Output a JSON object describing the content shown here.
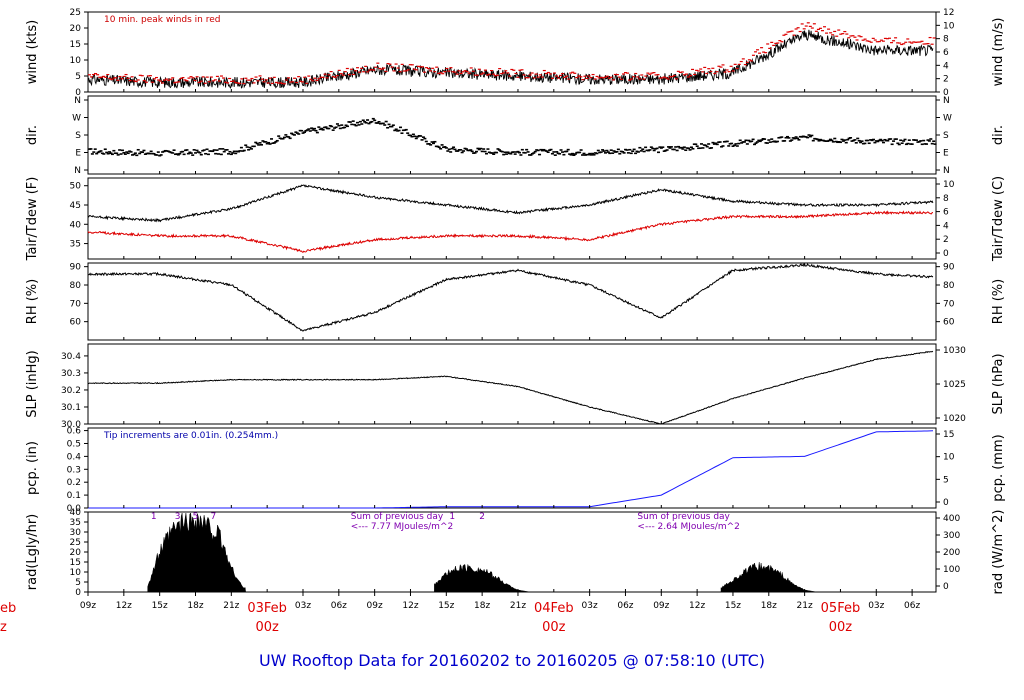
{
  "title": "UW Rooftop Data for 20160202  to  20160205 @ 07:58:10  (UTC)",
  "chart_data": [
    {
      "type": "line",
      "panel": "wind",
      "ylabel_left": "wind (kts)",
      "ylabel_right": "wind (m/s)",
      "ylim_left": [
        0,
        25
      ],
      "ticks_left": [
        "0",
        "5",
        "10",
        "15",
        "20",
        "25"
      ],
      "ylim_right": [
        0,
        12
      ],
      "ticks_right": [
        "0",
        "2",
        "4",
        "6",
        "8",
        "10",
        "12"
      ],
      "annotation": "10 min. peak winds in red",
      "series": [
        {
          "color": "#000000",
          "x_hours": [
            0,
            6,
            12,
            18,
            24,
            30,
            36,
            42,
            48,
            54,
            60,
            66,
            72,
            78,
            84
          ],
          "values": [
            4,
            3,
            3,
            3,
            7,
            6,
            5,
            4,
            4,
            6,
            18,
            13,
            13,
            7,
            5
          ]
        },
        {
          "color": "#dd0000",
          "x_hours": [
            0,
            6,
            12,
            18,
            24,
            30,
            36,
            42,
            48,
            54,
            60,
            66,
            72,
            78,
            84
          ],
          "values": [
            5,
            4,
            4,
            4,
            8,
            7,
            6,
            5,
            5,
            8,
            21,
            16,
            16,
            9,
            7
          ]
        }
      ]
    },
    {
      "type": "scatter",
      "panel": "direction",
      "ylabel_left": "dir.",
      "ylabel_right": "dir.",
      "ticks_left": [
        "N",
        "W",
        "S",
        "E",
        "N"
      ],
      "ticks_right": [
        "N",
        "W",
        "S",
        "E",
        "N"
      ],
      "x_hours": [
        0,
        6,
        12,
        18,
        24,
        30,
        36,
        42,
        48,
        54,
        60,
        66,
        72,
        78,
        84
      ],
      "values_deg": [
        100,
        90,
        100,
        200,
        260,
        110,
        95,
        95,
        110,
        140,
        170,
        150,
        150,
        120,
        130
      ]
    },
    {
      "type": "line",
      "panel": "temperature",
      "ylabel_left": "Tair/Tdew (F)",
      "ylabel_right": "Tair/Tdew (C)",
      "ylim_left": [
        31,
        52
      ],
      "ticks_left": [
        "35",
        "40",
        "45",
        "50"
      ],
      "ticks_right": [
        "0",
        "2",
        "4",
        "6",
        "8",
        "10"
      ],
      "series": [
        {
          "name": "Tair",
          "color": "#000000",
          "x_hours": [
            0,
            6,
            12,
            18,
            24,
            30,
            36,
            42,
            48,
            54,
            60,
            66,
            72,
            78,
            84
          ],
          "values": [
            42,
            41,
            44,
            50,
            47,
            45,
            43,
            45,
            49,
            46,
            45,
            45,
            46,
            48,
            50
          ]
        },
        {
          "name": "Tdew",
          "color": "#dd0000",
          "x_hours": [
            0,
            6,
            12,
            18,
            24,
            30,
            36,
            42,
            48,
            54,
            60,
            66,
            72,
            78,
            84
          ],
          "values": [
            38,
            37,
            37,
            33,
            36,
            37,
            37,
            36,
            40,
            42,
            42,
            43,
            43,
            45,
            43
          ]
        }
      ]
    },
    {
      "type": "line",
      "panel": "humidity",
      "ylabel_left": "RH (%)",
      "ylabel_right": "RH (%)",
      "ylim_left": [
        50,
        92
      ],
      "ticks_left": [
        "60",
        "70",
        "80",
        "90"
      ],
      "ticks_right": [
        "60",
        "70",
        "80",
        "90"
      ],
      "series": [
        {
          "color": "#000000",
          "x_hours": [
            0,
            6,
            12,
            18,
            24,
            30,
            36,
            42,
            48,
            54,
            60,
            66,
            72,
            78,
            84
          ],
          "values": [
            86,
            86,
            80,
            55,
            65,
            83,
            88,
            80,
            62,
            88,
            91,
            86,
            84,
            88,
            82
          ]
        }
      ]
    },
    {
      "type": "line",
      "panel": "pressure",
      "ylabel_left": "SLP (inHg)",
      "ylabel_right": "SLP (hPa)",
      "ylim_left": [
        30.0,
        30.47
      ],
      "ticks_left": [
        "30.0",
        "30.1",
        "30.2",
        "30.3",
        "30.4"
      ],
      "ticks_right": [
        "1020",
        "1025",
        "1030"
      ],
      "series": [
        {
          "color": "#000000",
          "x_hours": [
            0,
            6,
            12,
            18,
            24,
            30,
            36,
            42,
            48,
            54,
            60,
            66,
            72,
            78,
            84
          ],
          "values": [
            30.24,
            30.24,
            30.26,
            30.26,
            30.26,
            30.28,
            30.22,
            30.1,
            30.0,
            30.15,
            30.27,
            30.38,
            30.44,
            30.44,
            30.42
          ]
        }
      ]
    },
    {
      "type": "line",
      "panel": "precipitation",
      "ylabel_left": "pcp. (in)",
      "ylabel_right": "pcp. (mm)",
      "ylim_left": [
        0,
        0.62
      ],
      "ticks_left": [
        "0.0",
        "0.1",
        "0.2",
        "0.3",
        "0.4",
        "0.5",
        "0.6"
      ],
      "ticks_right": [
        "0",
        "5",
        "10",
        "15"
      ],
      "annotation": "Tip increments are 0.01in. (0.254mm.)",
      "series": [
        {
          "color": "#1a1aff",
          "x_hours": [
            0,
            6,
            12,
            18,
            24,
            30,
            36,
            42,
            48,
            54,
            60,
            66,
            72,
            78,
            84
          ],
          "values": [
            0,
            0,
            0,
            0,
            0,
            0.01,
            0.01,
            0.01,
            0.1,
            0.39,
            0.4,
            0.59,
            0.6,
            0.6,
            0.6
          ]
        }
      ]
    },
    {
      "type": "area",
      "panel": "radiation",
      "ylabel_left": "rad(Lgly/hr)",
      "ylabel_right": "rad (W/m^2)",
      "ylim_left": [
        0,
        40
      ],
      "ticks_left": [
        "0",
        "5",
        "10",
        "15",
        "20",
        "25",
        "30",
        "35",
        "40"
      ],
      "ticks_right": [
        "0",
        "100",
        "200",
        "300",
        "400"
      ],
      "day_labels": [
        {
          "hours": [
            [
              "1",
              5.5
            ],
            [
              "3",
              7.5
            ],
            [
              "5",
              9
            ],
            [
              "7",
              10.5
            ]
          ]
        },
        {
          "hours": [
            [
              "1",
              30.5
            ],
            [
              "2",
              33
            ]
          ]
        },
        {
          "hours": [
            [
              "1",
              80
            ],
            [
              "2",
              82.5
            ]
          ]
        }
      ],
      "notes": [
        {
          "line1": "Sum of previous day",
          "line2": "<--- 7.77 MJoules/m^2",
          "x_hour": 22
        },
        {
          "line1": "Sum of previous day",
          "line2": "<--- 2.64 MJoules/m^2",
          "x_hour": 46
        }
      ],
      "series": [
        {
          "color": "#000000",
          "x_hours": [
            5,
            6,
            7,
            8,
            9,
            10,
            11,
            12,
            13,
            29,
            30,
            31,
            32,
            33,
            34,
            35,
            36,
            37,
            53,
            54,
            55,
            56,
            57,
            58,
            59,
            60,
            61
          ],
          "values": [
            3,
            20,
            30,
            35,
            37,
            33,
            28,
            12,
            2,
            4,
            9,
            12,
            12,
            11,
            8,
            4,
            1,
            0,
            2,
            6,
            10,
            13,
            12,
            9,
            4,
            1,
            0
          ]
        }
      ]
    }
  ],
  "x_axis": {
    "start_hour_label": "09z",
    "labels": [
      "09z",
      "12z",
      "15z",
      "18z",
      "21z",
      "03z",
      "06z",
      "09z",
      "12z",
      "15z",
      "18z",
      "21z",
      "03z",
      "06z",
      "09z",
      "12z",
      "15z",
      "18z",
      "21z",
      "03z",
      "06z"
    ],
    "hours": [
      0,
      3,
      6,
      9,
      12,
      18,
      21,
      24,
      27,
      30,
      33,
      36,
      42,
      45,
      48,
      51,
      54,
      57,
      60,
      66,
      69
    ],
    "dates": [
      {
        "label": "03Feb",
        "sub": "00z",
        "hour": 15
      },
      {
        "label": "04Feb",
        "sub": "00z",
        "hour": 39
      },
      {
        "label": "05Feb",
        "sub": "00z",
        "hour": 63
      }
    ],
    "edge_date": {
      "label": "eb",
      "sub": "z"
    }
  }
}
